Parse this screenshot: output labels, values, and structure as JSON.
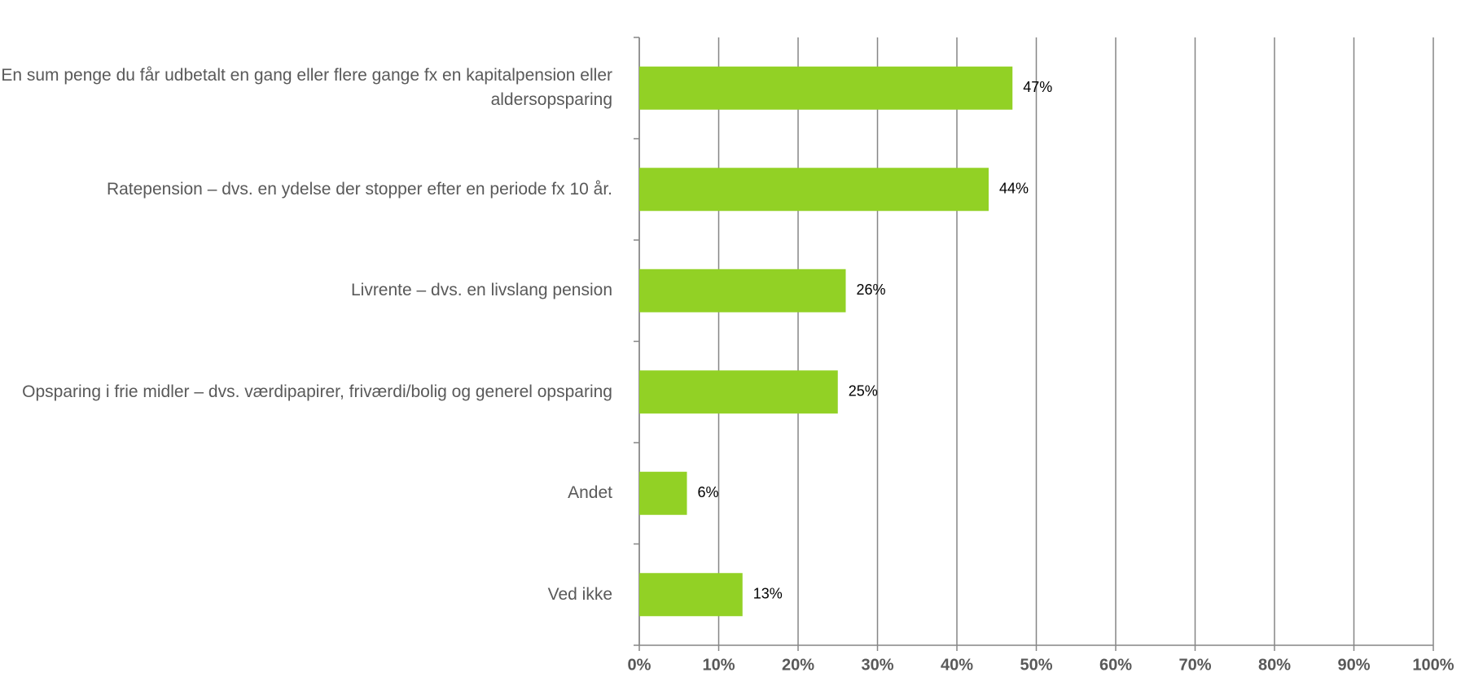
{
  "chart_data": {
    "type": "bar",
    "orientation": "horizontal",
    "categories": [
      "En sum penge du får udbetalt en gang eller flere gange fx en kapitalpension eller aldersopsparing",
      "Ratepension – dvs. en ydelse der stopper efter en periode fx 10 år.",
      "Livrente – dvs. en livslang pension",
      "Opsparing i frie midler – dvs. værdipapirer, friværdi/bolig og generel opsparing",
      "Andet",
      "Ved ikke"
    ],
    "values": [
      47,
      44,
      26,
      25,
      6,
      13
    ],
    "value_labels": [
      "47%",
      "44%",
      "26%",
      "25%",
      "6%",
      "13%"
    ],
    "color": "#92d125",
    "xlim": [
      0,
      100
    ],
    "xticks": [
      {
        "value": 0,
        "label": "0%"
      },
      {
        "value": 10,
        "label": "10%"
      },
      {
        "value": 20,
        "label": "20%"
      },
      {
        "value": 30,
        "label": "30%"
      },
      {
        "value": 40,
        "label": "40%"
      },
      {
        "value": 50,
        "label": "50%"
      },
      {
        "value": 60,
        "label": "60%"
      },
      {
        "value": 70,
        "label": "70%"
      },
      {
        "value": 80,
        "label": "80%"
      },
      {
        "value": 90,
        "label": "90%"
      },
      {
        "value": 100,
        "label": "100%"
      }
    ],
    "grid": true
  }
}
